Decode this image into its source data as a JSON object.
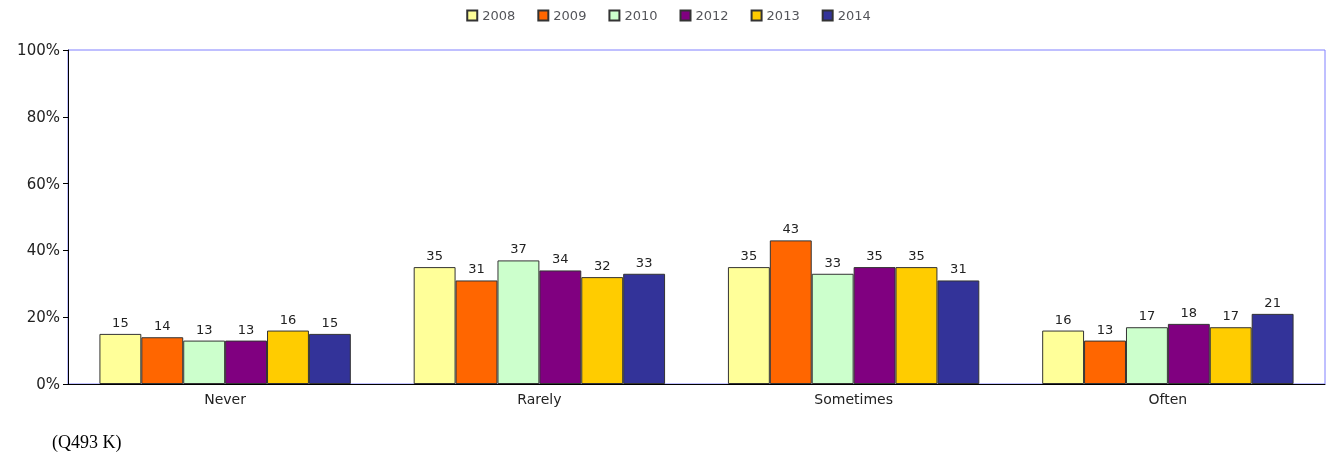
{
  "chart_data": {
    "type": "bar",
    "categories": [
      "Never",
      "Rarely",
      "Sometimes",
      "Often"
    ],
    "series": [
      {
        "name": "2008",
        "color": "#ffff99",
        "values": [
          15,
          35,
          35,
          16
        ]
      },
      {
        "name": "2009",
        "color": "#ff6600",
        "values": [
          14,
          31,
          43,
          13
        ]
      },
      {
        "name": "2010",
        "color": "#ccffcc",
        "values": [
          13,
          37,
          33,
          17
        ]
      },
      {
        "name": "2012",
        "color": "#800080",
        "values": [
          13,
          34,
          35,
          18
        ]
      },
      {
        "name": "2013",
        "color": "#ffcc00",
        "values": [
          16,
          32,
          35,
          17
        ]
      },
      {
        "name": "2014",
        "color": "#333399",
        "values": [
          15,
          33,
          31,
          21
        ]
      }
    ],
    "ylim": [
      0,
      100
    ],
    "yticks": [
      {
        "value": 0,
        "label": "0%"
      },
      {
        "value": 20,
        "label": "20%"
      },
      {
        "value": 40,
        "label": "40%"
      },
      {
        "value": 60,
        "label": "60%"
      },
      {
        "value": 80,
        "label": "80%"
      },
      {
        "value": 100,
        "label": "100%"
      }
    ],
    "data_labels": true,
    "grid": false,
    "legend": "top",
    "annotations": [
      "(Q493 K)"
    ]
  }
}
